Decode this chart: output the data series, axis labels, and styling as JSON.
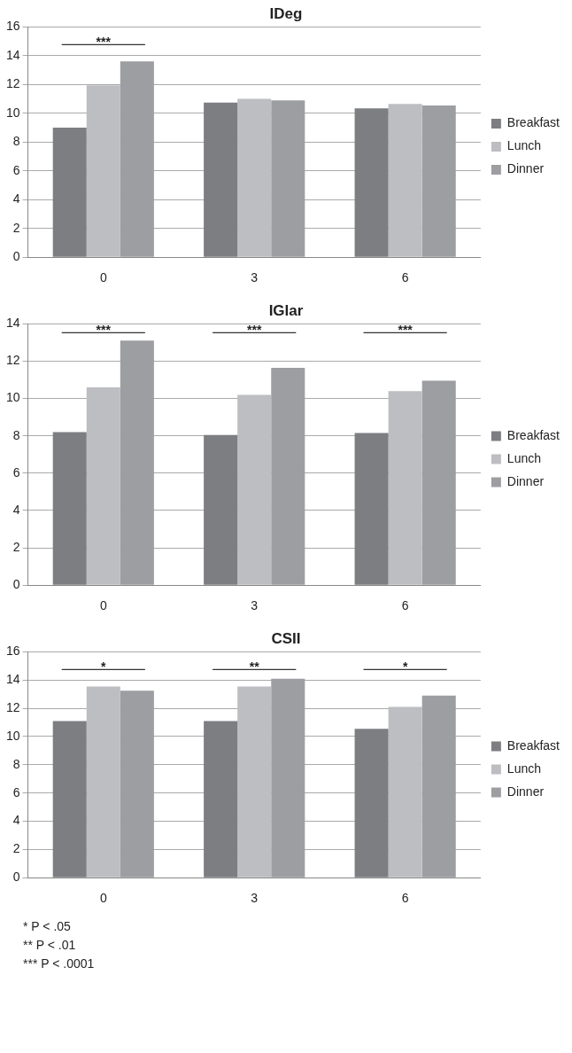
{
  "chart_data": [
    {
      "type": "bar",
      "title": "IDeg",
      "categories": [
        "0",
        "3",
        "6"
      ],
      "ylim": [
        0,
        16
      ],
      "yticks": [
        0,
        2,
        4,
        6,
        8,
        10,
        12,
        14,
        16
      ],
      "grid": "y",
      "legend": "right",
      "series": [
        {
          "name": "Breakfast",
          "color": "#7d7e82",
          "values": [
            9.0,
            10.75,
            10.35
          ]
        },
        {
          "name": "Lunch",
          "color": "#bdbec2",
          "values": [
            11.95,
            11.0,
            10.65
          ]
        },
        {
          "name": "Dinner",
          "color": "#9d9ea2",
          "values": [
            13.6,
            10.9,
            10.55
          ]
        }
      ],
      "annotations": [
        "***"
      ]
    },
    {
      "type": "bar",
      "title": "IGlar",
      "categories": [
        "0",
        "3",
        "6"
      ],
      "ylim": [
        0,
        14
      ],
      "yticks": [
        0,
        2,
        4,
        6,
        8,
        10,
        12,
        14
      ],
      "grid": "y",
      "legend": "right",
      "series": [
        {
          "name": "Breakfast",
          "color": "#7d7e82",
          "values": [
            8.2,
            8.05,
            8.15
          ]
        },
        {
          "name": "Lunch",
          "color": "#bdbec2",
          "values": [
            10.6,
            10.2,
            10.4
          ]
        },
        {
          "name": "Dinner",
          "color": "#9d9ea2",
          "values": [
            13.1,
            11.65,
            10.95
          ]
        }
      ],
      "annotations": [
        "***",
        "***",
        "***"
      ]
    },
    {
      "type": "bar",
      "title": "CSII",
      "categories": [
        "0",
        "3",
        "6"
      ],
      "ylim": [
        0,
        16
      ],
      "yticks": [
        0,
        2,
        4,
        6,
        8,
        10,
        12,
        14,
        16
      ],
      "grid": "y",
      "legend": "right",
      "series": [
        {
          "name": "Breakfast",
          "color": "#7d7e82",
          "values": [
            11.1,
            11.1,
            10.55
          ]
        },
        {
          "name": "Lunch",
          "color": "#bdbec2",
          "values": [
            13.55,
            13.55,
            12.1
          ]
        },
        {
          "name": "Dinner",
          "color": "#9d9ea2",
          "values": [
            13.25,
            14.1,
            12.9
          ]
        }
      ],
      "annotations": [
        "*",
        "**",
        "*",
        "* P < .05",
        "** P < .01",
        "*** P < .0001"
      ]
    }
  ]
}
